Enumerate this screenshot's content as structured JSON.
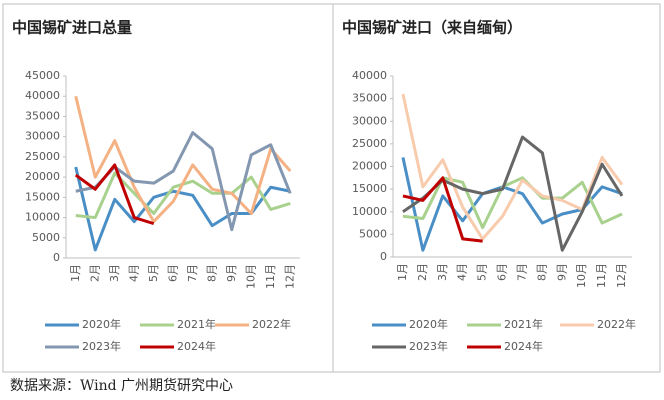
{
  "chart_data": [
    {
      "type": "line",
      "title": "中国锡矿进口总量",
      "categories": [
        "1月",
        "2月",
        "3月",
        "4月",
        "5月",
        "6月",
        "7月",
        "8月",
        "9月",
        "10月",
        "11月",
        "12月"
      ],
      "ylim": [
        0,
        45000
      ],
      "yticks": [
        0,
        5000,
        10000,
        15000,
        20000,
        25000,
        30000,
        35000,
        40000,
        45000
      ],
      "series": [
        {
          "name": "2020年",
          "color": "#4a8ec6",
          "values": [
            22500,
            2000,
            14500,
            9000,
            15000,
            16500,
            15500,
            8000,
            11000,
            11000,
            17500,
            16500
          ]
        },
        {
          "name": "2021年",
          "color": "#a9d18e",
          "values": [
            10500,
            10000,
            21000,
            16000,
            11000,
            17500,
            19000,
            16000,
            16000,
            20000,
            12000,
            13500
          ]
        },
        {
          "name": "2022年",
          "color": "#f4b183",
          "values": [
            40000,
            20000,
            29000,
            17500,
            9000,
            14000,
            23000,
            17000,
            16000,
            11000,
            27000,
            21500
          ]
        },
        {
          "name": "2023年",
          "color": "#8497b0",
          "values": [
            16500,
            17500,
            22500,
            19000,
            18500,
            21500,
            31000,
            27000,
            7000,
            25500,
            28000,
            16000
          ]
        },
        {
          "name": "2024年",
          "color": "#c00000",
          "values": [
            20500,
            17000,
            23000,
            10000,
            8500,
            null,
            null,
            null,
            null,
            null,
            null,
            null
          ]
        }
      ]
    },
    {
      "type": "line",
      "title": "中国锡矿进口（来自缅甸）",
      "categories": [
        "1月",
        "2月",
        "3月",
        "4月",
        "5月",
        "6月",
        "7月",
        "8月",
        "9月",
        "10月",
        "11月",
        "12月"
      ],
      "ylim": [
        0,
        40000
      ],
      "yticks": [
        0,
        5000,
        10000,
        15000,
        20000,
        25000,
        30000,
        35000,
        40000
      ],
      "series": [
        {
          "name": "2020年",
          "color": "#4a8ec6",
          "values": [
            22000,
            1500,
            13500,
            8000,
            14000,
            15500,
            14000,
            7500,
            9500,
            10500,
            15500,
            14000
          ]
        },
        {
          "name": "2021年",
          "color": "#a9d18e",
          "values": [
            9000,
            8500,
            17500,
            16500,
            6500,
            15500,
            17500,
            13000,
            13000,
            16500,
            7500,
            9500
          ]
        },
        {
          "name": "2022年",
          "color": "#f8cbad",
          "values": [
            36000,
            15500,
            21500,
            11000,
            4000,
            9000,
            17000,
            13500,
            12500,
            10500,
            22000,
            16000
          ]
        },
        {
          "name": "2023年",
          "color": "#666666",
          "values": [
            10000,
            13000,
            17000,
            15000,
            14000,
            15000,
            26500,
            23000,
            1500,
            10000,
            20500,
            13500
          ]
        },
        {
          "name": "2024年",
          "color": "#c00000",
          "values": [
            13500,
            12500,
            17500,
            4000,
            3500,
            null,
            null,
            null,
            null,
            null,
            null,
            null
          ]
        }
      ]
    }
  ],
  "source": "数据来源：Wind  广州期货研究中心"
}
